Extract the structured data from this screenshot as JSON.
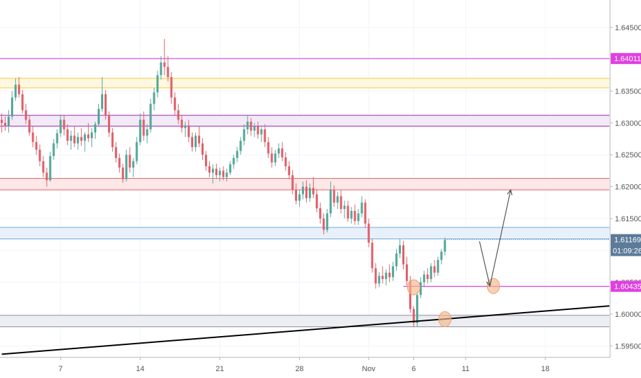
{
  "chart_data": {
    "type": "candlestick",
    "title": "",
    "xlabel": "",
    "ylabel": "",
    "x_ticks": [
      {
        "label": "7",
        "bar": 17
      },
      {
        "label": "14",
        "bar": 40
      },
      {
        "label": "21",
        "bar": 63
      },
      {
        "label": "28",
        "bar": 86
      },
      {
        "label": "Nov",
        "bar": 106
      },
      {
        "label": "6",
        "bar": 119
      },
      {
        "label": "11",
        "bar": 134
      },
      {
        "label": "18",
        "bar": 157
      }
    ],
    "y_ticks": [
      "1.64500",
      "1.64000",
      "1.63500",
      "1.63000",
      "1.62500",
      "1.62000",
      "1.61500",
      "1.61000",
      "1.60500",
      "1.60000",
      "1.59500"
    ],
    "y_tick_values": [
      1.645,
      1.64,
      1.635,
      1.63,
      1.625,
      1.62,
      1.615,
      1.61,
      1.605,
      1.6,
      1.595
    ],
    "ylim": [
      1.5932,
      1.6493
    ],
    "bar_count_visible": 176,
    "zones": [
      {
        "low": 1.6355,
        "high": 1.637,
        "color": "#f5c542",
        "fill": "#fff8e0"
      },
      {
        "low": 1.6295,
        "high": 1.6312,
        "color": "#9c27b0",
        "fill": "#f3eaf8"
      },
      {
        "low": 1.6195,
        "high": 1.6213,
        "color": "#e06666",
        "fill": "#fde7e7"
      },
      {
        "low": 1.6118,
        "high": 1.6136,
        "color": "#6fa8dc",
        "fill": "#e8f1fb"
      },
      {
        "low": 1.598,
        "high": 1.5998,
        "color": "#8e8ea0",
        "fill": "#eceef2"
      }
    ],
    "level_lines": [
      {
        "value": 1.64011,
        "label": "1.64011",
        "color": "#e040e0"
      },
      {
        "value": 1.60435,
        "label": "1.60435",
        "color": "#e040e0",
        "from_bar": 116
      }
    ],
    "current_price": {
      "value": 1.61169,
      "label": "1.61169",
      "countdown": "01:09:26",
      "color": "#5c7b99"
    },
    "trendline": {
      "start": {
        "bar": 0,
        "price": 1.5937
      },
      "end": {
        "bar": 176,
        "price": 1.6013
      },
      "color": "#000000"
    },
    "projection_arrow": {
      "points": [
        {
          "bar": 138,
          "price": 1.6114
        },
        {
          "bar": 141,
          "price": 1.6044
        },
        {
          "bar": 147,
          "price": 1.6195
        }
      ],
      "color": "#555555"
    },
    "circle_markers": [
      {
        "bar": 119,
        "price": 1.6042
      },
      {
        "bar": 128,
        "price": 1.5992
      },
      {
        "bar": 142,
        "price": 1.6044
      }
    ],
    "ohlc": [
      [
        1.6305,
        1.6315,
        1.6285,
        1.63
      ],
      [
        1.63,
        1.631,
        1.6288,
        1.6295
      ],
      [
        1.6295,
        1.632,
        1.6285,
        1.631
      ],
      [
        1.631,
        1.635,
        1.6305,
        1.634
      ],
      [
        1.634,
        1.637,
        1.6335,
        1.636
      ],
      [
        1.636,
        1.6372,
        1.634,
        1.6345
      ],
      [
        1.6345,
        1.6352,
        1.6315,
        1.632
      ],
      [
        1.632,
        1.633,
        1.6298,
        1.6305
      ],
      [
        1.6305,
        1.6312,
        1.628,
        1.6285
      ],
      [
        1.6285,
        1.6295,
        1.6262,
        1.627
      ],
      [
        1.627,
        1.628,
        1.625,
        1.6258
      ],
      [
        1.6258,
        1.6266,
        1.6232,
        1.624
      ],
      [
        1.624,
        1.6248,
        1.6215,
        1.6222
      ],
      [
        1.6222,
        1.623,
        1.62,
        1.621
      ],
      [
        1.621,
        1.6255,
        1.6208,
        1.6248
      ],
      [
        1.6248,
        1.6275,
        1.6242,
        1.6268
      ],
      [
        1.6268,
        1.629,
        1.626,
        1.6284
      ],
      [
        1.6284,
        1.6312,
        1.6278,
        1.6305
      ],
      [
        1.6305,
        1.6312,
        1.628,
        1.629
      ],
      [
        1.629,
        1.6298,
        1.6265,
        1.6272
      ],
      [
        1.6272,
        1.6288,
        1.6258,
        1.628
      ],
      [
        1.628,
        1.6295,
        1.6262,
        1.6268
      ],
      [
        1.6268,
        1.6285,
        1.6258,
        1.6278
      ],
      [
        1.6278,
        1.6292,
        1.6264,
        1.6272
      ],
      [
        1.6272,
        1.6286,
        1.6255,
        1.6282
      ],
      [
        1.6282,
        1.63,
        1.627,
        1.6276
      ],
      [
        1.6276,
        1.6292,
        1.6262,
        1.6285
      ],
      [
        1.6285,
        1.6302,
        1.6275,
        1.6298
      ],
      [
        1.6298,
        1.633,
        1.6295,
        1.6322
      ],
      [
        1.6322,
        1.6372,
        1.6318,
        1.6345
      ],
      [
        1.6345,
        1.6352,
        1.6305,
        1.6312
      ],
      [
        1.6312,
        1.6318,
        1.6278,
        1.6285
      ],
      [
        1.6285,
        1.6292,
        1.6255,
        1.6262
      ],
      [
        1.6262,
        1.627,
        1.6238,
        1.6245
      ],
      [
        1.6245,
        1.6252,
        1.6222,
        1.623
      ],
      [
        1.623,
        1.6236,
        1.6206,
        1.6212
      ],
      [
        1.6212,
        1.6258,
        1.6208,
        1.625
      ],
      [
        1.625,
        1.6262,
        1.6222,
        1.623
      ],
      [
        1.623,
        1.6245,
        1.6215,
        1.624
      ],
      [
        1.624,
        1.6278,
        1.6235,
        1.627
      ],
      [
        1.627,
        1.6315,
        1.6265,
        1.6305
      ],
      [
        1.6305,
        1.6318,
        1.6272,
        1.628
      ],
      [
        1.628,
        1.6298,
        1.6268,
        1.629
      ],
      [
        1.629,
        1.6338,
        1.6285,
        1.633
      ],
      [
        1.633,
        1.6355,
        1.632,
        1.6348
      ],
      [
        1.6348,
        1.6382,
        1.634,
        1.6375
      ],
      [
        1.6375,
        1.6405,
        1.6368,
        1.6395
      ],
      [
        1.6395,
        1.6432,
        1.6375,
        1.6388
      ],
      [
        1.6388,
        1.6405,
        1.6365,
        1.6372
      ],
      [
        1.6372,
        1.638,
        1.633,
        1.634
      ],
      [
        1.634,
        1.6348,
        1.6312,
        1.632
      ],
      [
        1.632,
        1.633,
        1.6298,
        1.6305
      ],
      [
        1.6305,
        1.6312,
        1.6285,
        1.6292
      ],
      [
        1.6292,
        1.6302,
        1.6278,
        1.6296
      ],
      [
        1.6296,
        1.6305,
        1.627,
        1.6278
      ],
      [
        1.6278,
        1.6285,
        1.6255,
        1.6262
      ],
      [
        1.6262,
        1.6285,
        1.6255,
        1.628
      ],
      [
        1.628,
        1.6295,
        1.6262,
        1.6268
      ],
      [
        1.6268,
        1.6276,
        1.6242,
        1.625
      ],
      [
        1.625,
        1.6256,
        1.6225,
        1.6232
      ],
      [
        1.6232,
        1.624,
        1.6215,
        1.6222
      ],
      [
        1.6222,
        1.6235,
        1.6205,
        1.6228
      ],
      [
        1.6228,
        1.6236,
        1.6212,
        1.6218
      ],
      [
        1.6218,
        1.623,
        1.6208,
        1.6225
      ],
      [
        1.6225,
        1.6232,
        1.621,
        1.6215
      ],
      [
        1.6215,
        1.6228,
        1.6208,
        1.6222
      ],
      [
        1.6222,
        1.624,
        1.6218,
        1.6235
      ],
      [
        1.6235,
        1.625,
        1.6228,
        1.6245
      ],
      [
        1.6245,
        1.6262,
        1.6238,
        1.6256
      ],
      [
        1.6256,
        1.6278,
        1.625,
        1.6272
      ],
      [
        1.6272,
        1.6298,
        1.6265,
        1.629
      ],
      [
        1.629,
        1.6312,
        1.6282,
        1.6302
      ],
      [
        1.6302,
        1.6308,
        1.628,
        1.6288
      ],
      [
        1.6288,
        1.63,
        1.6278,
        1.6295
      ],
      [
        1.6295,
        1.6302,
        1.6275,
        1.6282
      ],
      [
        1.6282,
        1.6296,
        1.627,
        1.629
      ],
      [
        1.629,
        1.6298,
        1.6262,
        1.627
      ],
      [
        1.627,
        1.6278,
        1.6245,
        1.6252
      ],
      [
        1.6252,
        1.6262,
        1.623,
        1.6238
      ],
      [
        1.6238,
        1.6258,
        1.6232,
        1.6252
      ],
      [
        1.6252,
        1.6268,
        1.6245,
        1.626
      ],
      [
        1.626,
        1.627,
        1.624,
        1.6246
      ],
      [
        1.6246,
        1.6254,
        1.6225,
        1.6232
      ],
      [
        1.6232,
        1.624,
        1.6212,
        1.6218
      ],
      [
        1.6218,
        1.6226,
        1.6188,
        1.6195
      ],
      [
        1.6195,
        1.6205,
        1.6172,
        1.6178
      ],
      [
        1.6178,
        1.6195,
        1.6168,
        1.6188
      ],
      [
        1.6188,
        1.6208,
        1.618,
        1.62
      ],
      [
        1.62,
        1.621,
        1.6175,
        1.6182
      ],
      [
        1.6182,
        1.6205,
        1.6176,
        1.6198
      ],
      [
        1.6198,
        1.6215,
        1.6182,
        1.6188
      ],
      [
        1.6188,
        1.6196,
        1.616,
        1.6166
      ],
      [
        1.6166,
        1.6175,
        1.6142,
        1.615
      ],
      [
        1.615,
        1.6158,
        1.6125,
        1.6132
      ],
      [
        1.6132,
        1.6165,
        1.6128,
        1.6158
      ],
      [
        1.6158,
        1.6208,
        1.6152,
        1.6195
      ],
      [
        1.6195,
        1.6202,
        1.6168,
        1.6175
      ],
      [
        1.6175,
        1.6192,
        1.6165,
        1.6185
      ],
      [
        1.6185,
        1.6195,
        1.6158,
        1.6165
      ],
      [
        1.6165,
        1.6178,
        1.615,
        1.617
      ],
      [
        1.617,
        1.6178,
        1.6145,
        1.615
      ],
      [
        1.615,
        1.6168,
        1.6142,
        1.6162
      ],
      [
        1.6162,
        1.6172,
        1.614,
        1.6146
      ],
      [
        1.6146,
        1.6165,
        1.614,
        1.6158
      ],
      [
        1.6158,
        1.6185,
        1.6152,
        1.6175
      ],
      [
        1.6175,
        1.618,
        1.6135,
        1.6142
      ],
      [
        1.6142,
        1.615,
        1.6105,
        1.6112
      ],
      [
        1.6112,
        1.6118,
        1.6065,
        1.6072
      ],
      [
        1.6072,
        1.608,
        1.604,
        1.6048
      ],
      [
        1.6048,
        1.6066,
        1.6042,
        1.606
      ],
      [
        1.606,
        1.6075,
        1.6048,
        1.6055
      ],
      [
        1.6055,
        1.607,
        1.6045,
        1.6065
      ],
      [
        1.6065,
        1.6078,
        1.605,
        1.6058
      ],
      [
        1.6058,
        1.6082,
        1.6052,
        1.6075
      ],
      [
        1.6075,
        1.6102,
        1.6068,
        1.6095
      ],
      [
        1.6095,
        1.6118,
        1.6088,
        1.6108
      ],
      [
        1.6108,
        1.6115,
        1.607,
        1.6078
      ],
      [
        1.6078,
        1.609,
        1.6045,
        1.6052
      ],
      [
        1.6052,
        1.606,
        1.6002,
        1.6008
      ],
      [
        1.6008,
        1.6012,
        1.598,
        1.5986
      ],
      [
        1.5986,
        1.6035,
        1.598,
        1.603
      ],
      [
        1.603,
        1.6058,
        1.6025,
        1.605
      ],
      [
        1.605,
        1.6068,
        1.6042,
        1.6062
      ],
      [
        1.6062,
        1.6072,
        1.6048,
        1.6055
      ],
      [
        1.6055,
        1.608,
        1.605,
        1.6075
      ],
      [
        1.6075,
        1.6085,
        1.6058,
        1.6065
      ],
      [
        1.6065,
        1.609,
        1.606,
        1.6085
      ],
      [
        1.6085,
        1.6102,
        1.6078,
        1.6098
      ],
      [
        1.6098,
        1.612,
        1.6092,
        1.6116
      ]
    ]
  }
}
